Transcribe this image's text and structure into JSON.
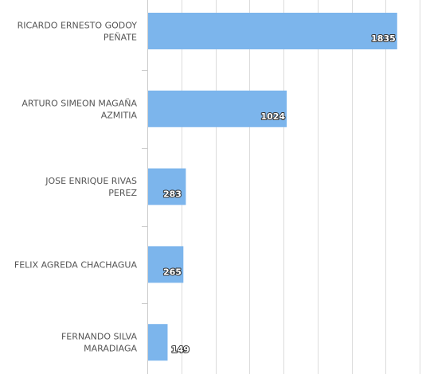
{
  "chart_data": {
    "type": "bar",
    "orientation": "horizontal",
    "categories": [
      [
        "RICARDO ERNESTO GODOY",
        "PEÑATE"
      ],
      [
        "ARTURO SIMEON MAGAÑA",
        "AZMITIA"
      ],
      [
        "JOSE ENRIQUE RIVAS",
        "PEREZ"
      ],
      [
        "FELIX AGREDA CHACHAGUA"
      ],
      [
        "FERNANDO SILVA",
        "MARADIAGA"
      ]
    ],
    "values": [
      1835,
      1024,
      283,
      265,
      149
    ],
    "xlim": [
      0,
      2000
    ],
    "grid": true,
    "bar_color": "#7cb5ec",
    "data_labels": true
  }
}
